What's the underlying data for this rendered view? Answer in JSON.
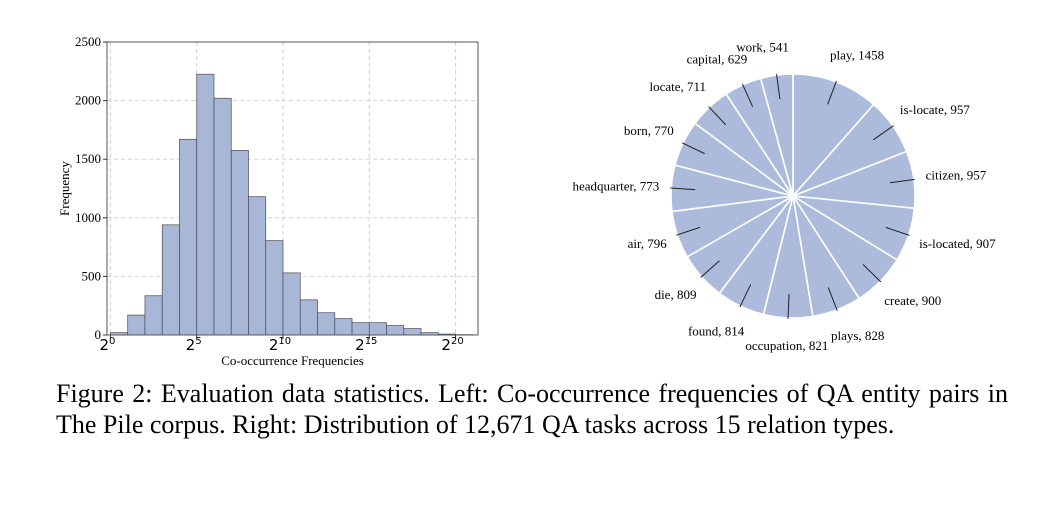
{
  "chart_data": [
    {
      "type": "bar",
      "subtype": "histogram",
      "xlabel": "Co-occurrence Frequencies",
      "ylabel": "Frequency",
      "ylim": [
        0,
        2500
      ],
      "yticks": [
        0,
        500,
        1000,
        1500,
        2000,
        2500
      ],
      "x_scale": "log2",
      "xlim_log2": [
        -0.2,
        21.3
      ],
      "xticks": [
        {
          "base": "2",
          "exp": "0",
          "value_log2": 0
        },
        {
          "base": "2",
          "exp": "5",
          "value_log2": 5
        },
        {
          "base": "2",
          "exp": "10",
          "value_log2": 10
        },
        {
          "base": "2",
          "exp": "15",
          "value_log2": 15
        },
        {
          "base": "2",
          "exp": "20",
          "value_log2": 20
        }
      ],
      "bins_log2": [
        {
          "start": 0.0,
          "end": 1.0,
          "value": 20
        },
        {
          "start": 1.0,
          "end": 2.0,
          "value": 170
        },
        {
          "start": 2.0,
          "end": 3.0,
          "value": 335
        },
        {
          "start": 3.0,
          "end": 4.0,
          "value": 940
        },
        {
          "start": 4.0,
          "end": 5.0,
          "value": 1670
        },
        {
          "start": 5.0,
          "end": 6.0,
          "value": 2225
        },
        {
          "start": 6.0,
          "end": 7.0,
          "value": 2020
        },
        {
          "start": 7.0,
          "end": 8.0,
          "value": 1575
        },
        {
          "start": 8.0,
          "end": 9.0,
          "value": 1180
        },
        {
          "start": 9.0,
          "end": 10.0,
          "value": 805
        },
        {
          "start": 10.0,
          "end": 11.0,
          "value": 530
        },
        {
          "start": 11.0,
          "end": 12.0,
          "value": 300
        },
        {
          "start": 12.0,
          "end": 13.0,
          "value": 190
        },
        {
          "start": 13.0,
          "end": 14.0,
          "value": 140
        },
        {
          "start": 14.0,
          "end": 15.0,
          "value": 105
        },
        {
          "start": 15.0,
          "end": 16.0,
          "value": 105
        },
        {
          "start": 16.0,
          "end": 17.0,
          "value": 80
        },
        {
          "start": 17.0,
          "end": 18.0,
          "value": 55
        },
        {
          "start": 18.0,
          "end": 19.0,
          "value": 20
        },
        {
          "start": 19.0,
          "end": 20.0,
          "value": 8
        },
        {
          "start": 20.0,
          "end": 21.0,
          "value": 3
        }
      ],
      "grid": true,
      "bar_color": "#A9B7D6"
    },
    {
      "type": "pie",
      "slice_color": "#ACBADB",
      "slices": [
        {
          "label": "play",
          "value": 1458
        },
        {
          "label": "is-locate",
          "value": 957
        },
        {
          "label": "citizen",
          "value": 957
        },
        {
          "label": "is-located",
          "value": 907
        },
        {
          "label": "create",
          "value": 900
        },
        {
          "label": "plays",
          "value": 828
        },
        {
          "label": "occupation",
          "value": 821
        },
        {
          "label": "found",
          "value": 814
        },
        {
          "label": "die",
          "value": 809
        },
        {
          "label": "air",
          "value": 796
        },
        {
          "label": "headquarter",
          "value": 773
        },
        {
          "label": "born",
          "value": 770
        },
        {
          "label": "locate",
          "value": 711
        },
        {
          "label": "capital",
          "value": 629
        },
        {
          "label": "work",
          "value": 541
        }
      ]
    }
  ],
  "caption": "Figure 2: Evaluation data statistics. Left: Co-occurrence frequencies of QA entity pairs in The Pile corpus. Right: Distribution of 12,671 QA tasks across 15 relation types."
}
